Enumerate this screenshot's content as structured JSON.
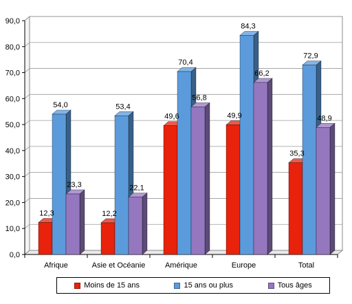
{
  "chart_data": {
    "type": "bar",
    "categories": [
      "Afrique",
      "Asie et Océanie",
      "Amérique",
      "Europe",
      "Total"
    ],
    "series": [
      {
        "name": "Moins de 15 ans",
        "values": [
          12.3,
          12.2,
          49.6,
          49.9,
          35.3
        ],
        "labels": [
          "12,3",
          "12,2",
          "49,6",
          "49,9",
          "35,3"
        ],
        "color": "#e8220b"
      },
      {
        "name": "15 ans ou plus",
        "values": [
          54.0,
          53.4,
          70.4,
          84.3,
          72.9
        ],
        "labels": [
          "54,0",
          "53,4",
          "70,4",
          "84,3",
          "72,9"
        ],
        "color": "#5b9bdc"
      },
      {
        "name": "Tous âges",
        "values": [
          23.3,
          22.1,
          56.8,
          66.2,
          48.9
        ],
        "labels": [
          "23,3",
          "22,1",
          "56,8",
          "66,2",
          "48,9"
        ],
        "color": "#9577c0"
      }
    ],
    "ylim": [
      0,
      90
    ],
    "yticks": [
      "0,0",
      "10,0",
      "20,0",
      "30,0",
      "40,0",
      "50,0",
      "60,0",
      "70,0",
      "80,0",
      "90,0"
    ],
    "title": "",
    "xlabel": "",
    "ylabel": "",
    "grid": true,
    "legend_position": "bottom",
    "style": "3d-bar"
  }
}
